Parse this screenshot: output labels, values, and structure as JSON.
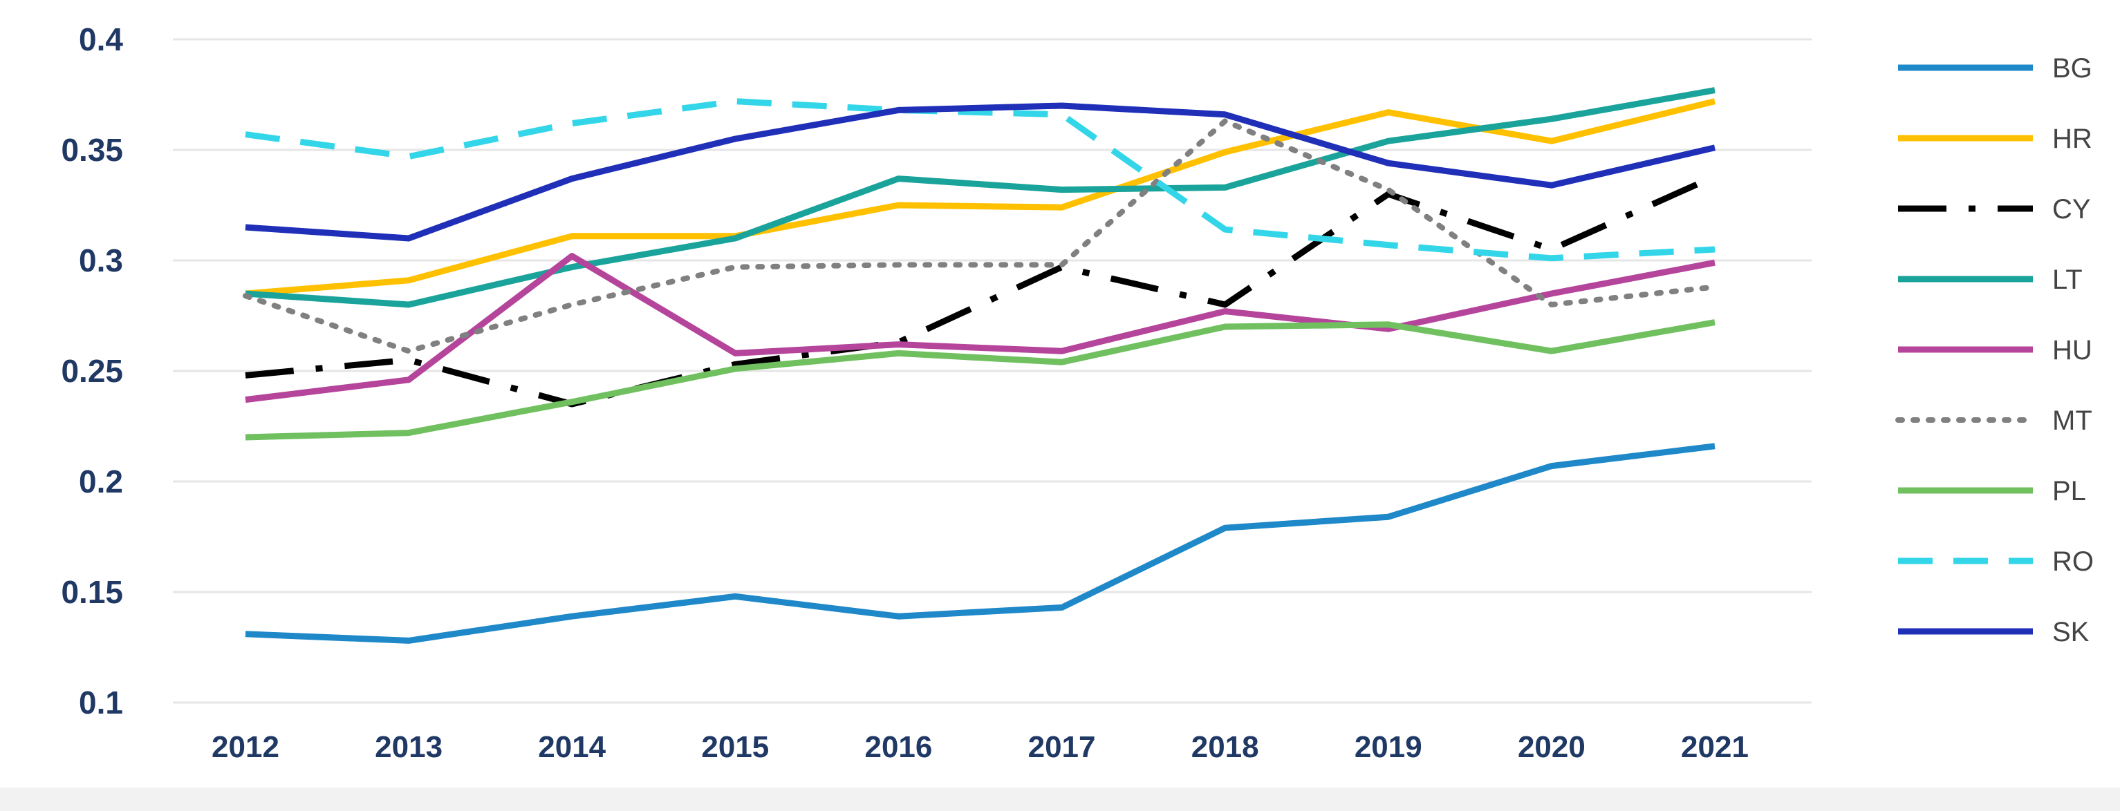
{
  "chart_data": {
    "type": "line",
    "title": "",
    "xlabel": "",
    "ylabel": "",
    "x": [
      "2012",
      "2013",
      "2014",
      "2015",
      "2016",
      "2017",
      "2018",
      "2019",
      "2020",
      "2021"
    ],
    "ylim": [
      0.1,
      0.4
    ],
    "yticks": [
      0.1,
      0.15,
      0.2,
      0.25,
      0.3,
      0.35,
      0.4
    ],
    "ytick_labels": [
      "0.1",
      "0.15",
      "0.2",
      "0.25",
      "0.3",
      "0.35",
      "0.4"
    ],
    "grid": true,
    "legend_position": "right",
    "series": [
      {
        "name": "BG",
        "color": "#1e88c8",
        "style": "solid",
        "values": [
          0.131,
          0.128,
          0.139,
          0.148,
          0.139,
          0.143,
          0.179,
          0.184,
          0.207,
          0.216
        ]
      },
      {
        "name": "HR",
        "color": "#ffc000",
        "style": "solid",
        "values": [
          0.285,
          0.291,
          0.311,
          0.311,
          0.325,
          0.324,
          0.349,
          0.367,
          0.354,
          0.372
        ]
      },
      {
        "name": "CY",
        "color": "#000000",
        "style": "dashdot",
        "values": [
          0.248,
          0.255,
          0.235,
          0.253,
          0.263,
          0.297,
          0.28,
          0.33,
          0.305,
          0.338
        ]
      },
      {
        "name": "LT",
        "color": "#1aa39a",
        "style": "solid",
        "values": [
          0.285,
          0.28,
          0.297,
          0.31,
          0.337,
          0.332,
          0.333,
          0.354,
          0.364,
          0.377
        ]
      },
      {
        "name": "HU",
        "color": "#b5449b",
        "style": "solid",
        "values": [
          0.237,
          0.246,
          0.302,
          0.258,
          0.262,
          0.259,
          0.277,
          0.269,
          0.285,
          0.299
        ]
      },
      {
        "name": "MT",
        "color": "#808080",
        "style": "dotted",
        "values": [
          0.284,
          0.259,
          0.28,
          0.297,
          0.298,
          0.298,
          0.363,
          0.332,
          0.28,
          0.288
        ]
      },
      {
        "name": "PL",
        "color": "#70c060",
        "style": "solid",
        "values": [
          0.22,
          0.222,
          0.236,
          0.251,
          0.258,
          0.254,
          0.27,
          0.271,
          0.259,
          0.272
        ]
      },
      {
        "name": "RO",
        "color": "#33d6e8",
        "style": "dashed",
        "values": [
          0.357,
          0.347,
          0.362,
          0.372,
          0.368,
          0.366,
          0.314,
          0.307,
          0.301,
          0.305
        ]
      },
      {
        "name": "SK",
        "color": "#1f2fb8",
        "style": "solid",
        "values": [
          0.315,
          0.31,
          0.337,
          0.355,
          0.368,
          0.37,
          0.366,
          0.344,
          0.334,
          0.351
        ]
      }
    ]
  }
}
